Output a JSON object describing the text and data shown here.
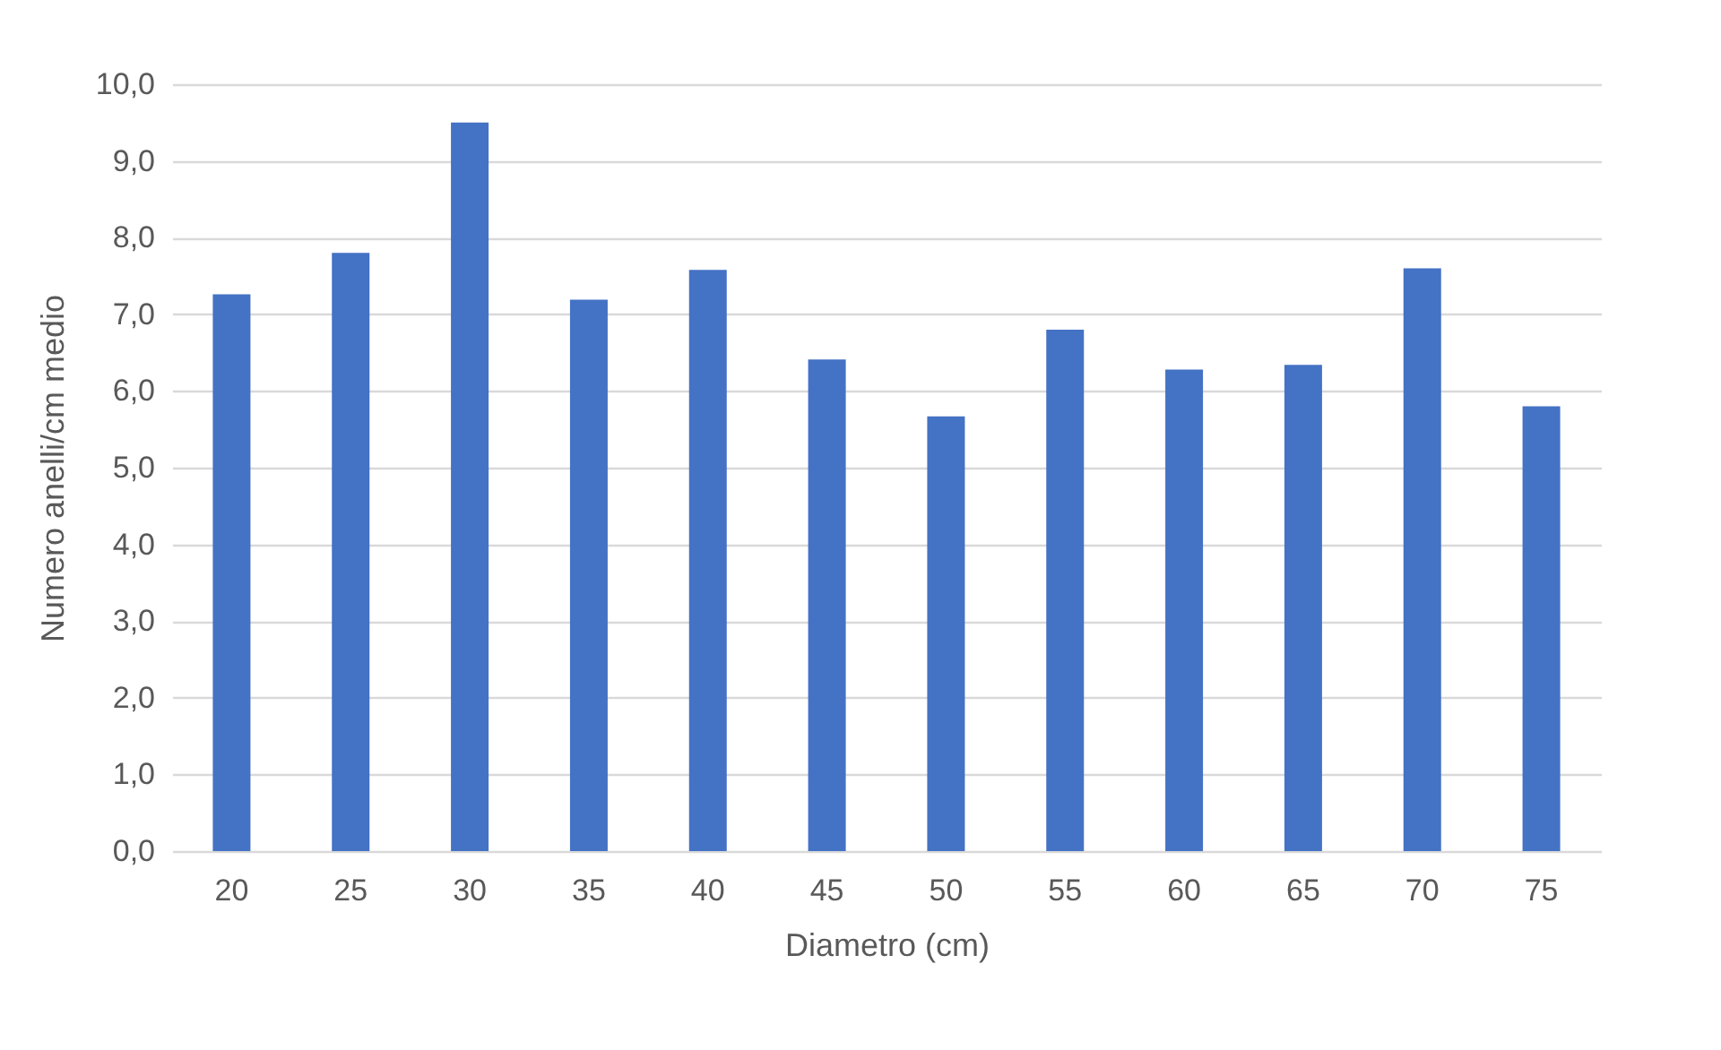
{
  "chart_data": {
    "type": "bar",
    "xlabel": "Diametro (cm)",
    "ylabel": "Numero anelli/cm medio",
    "categories": [
      "20",
      "25",
      "30",
      "35",
      "40",
      "45",
      "50",
      "55",
      "60",
      "65",
      "70",
      "75"
    ],
    "values": [
      7.26,
      7.8,
      9.5,
      7.19,
      7.58,
      6.41,
      5.67,
      6.8,
      6.28,
      6.34,
      7.6,
      5.8
    ],
    "color": "#4472c4",
    "ylim": [
      0,
      10
    ],
    "yticks": [
      {
        "value": 0,
        "label": "0,0"
      },
      {
        "value": 1,
        "label": "1,0"
      },
      {
        "value": 2,
        "label": "2,0"
      },
      {
        "value": 3,
        "label": "3,0"
      },
      {
        "value": 4,
        "label": "4,0"
      },
      {
        "value": 5,
        "label": "5,0"
      },
      {
        "value": 6,
        "label": "6,0"
      },
      {
        "value": 7,
        "label": "7,0"
      },
      {
        "value": 8,
        "label": "8,0"
      },
      {
        "value": 9,
        "label": "9,0"
      },
      {
        "value": 10,
        "label": "10,0"
      }
    ],
    "grid": "y"
  }
}
